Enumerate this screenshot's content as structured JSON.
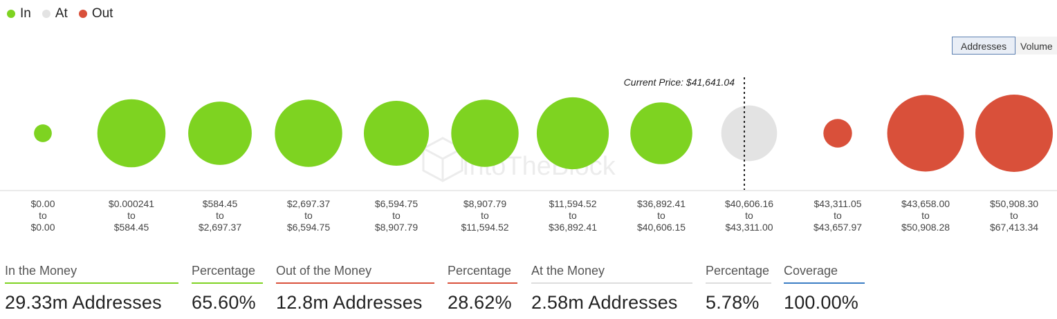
{
  "legend": [
    {
      "label": "In",
      "color": "#7ed321"
    },
    {
      "label": "At",
      "color": "#e3e3e3"
    },
    {
      "label": "Out",
      "color": "#d9503a"
    }
  ],
  "toggle": {
    "addresses": "Addresses",
    "volume": "Volume"
  },
  "watermark": "IntoTheBlock",
  "chart_data": {
    "type": "scatter",
    "encoding": "bubble size = number of addresses in price range",
    "current_price_label": "Current Price: $41,641.04",
    "current_price_bucket": 8,
    "categories": [
      {
        "from": "$0.00",
        "to": "$0.00",
        "status": "in"
      },
      {
        "from": "$0.000241",
        "to": "$584.45",
        "status": "in"
      },
      {
        "from": "$584.45",
        "to": "$2,697.37",
        "status": "in"
      },
      {
        "from": "$2,697.37",
        "to": "$6,594.75",
        "status": "in"
      },
      {
        "from": "$6,594.75",
        "to": "$8,907.79",
        "status": "in"
      },
      {
        "from": "$8,907.79",
        "to": "$11,594.52",
        "status": "in"
      },
      {
        "from": "$11,594.52",
        "to": "$36,892.41",
        "status": "in"
      },
      {
        "from": "$36,892.41",
        "to": "$40,606.15",
        "status": "in"
      },
      {
        "from": "$40,606.16",
        "to": "$43,311.00",
        "status": "at"
      },
      {
        "from": "$43,311.05",
        "to": "$43,657.97",
        "status": "out"
      },
      {
        "from": "$43,658.00",
        "to": "$50,908.28",
        "status": "out"
      },
      {
        "from": "$50,908.30",
        "to": "$67,413.34",
        "status": "out"
      }
    ],
    "to_word": "to",
    "relative_size": [
      0.23,
      0.88,
      0.82,
      0.87,
      0.84,
      0.87,
      0.93,
      0.8,
      0.72,
      0.37,
      0.99,
      1.0
    ],
    "colors": {
      "in": "#7ed321",
      "at": "#e3e3e3",
      "out": "#d9503a"
    }
  },
  "stats": [
    {
      "label": "In the Money",
      "value": "29.33m Addresses",
      "color": "#7ed321"
    },
    {
      "label": "Percentage",
      "value": "65.60%",
      "color": "#7ed321"
    },
    {
      "label": "Out of the Money",
      "value": "12.8m Addresses",
      "color": "#d9503a"
    },
    {
      "label": "Percentage",
      "value": "28.62%",
      "color": "#d9503a"
    },
    {
      "label": "At the Money",
      "value": "2.58m Addresses",
      "color": "#dddddd"
    },
    {
      "label": "Percentage",
      "value": "5.78%",
      "color": "#dddddd"
    },
    {
      "label": "Coverage",
      "value": "100.00%",
      "color": "#3b7dc4"
    }
  ]
}
